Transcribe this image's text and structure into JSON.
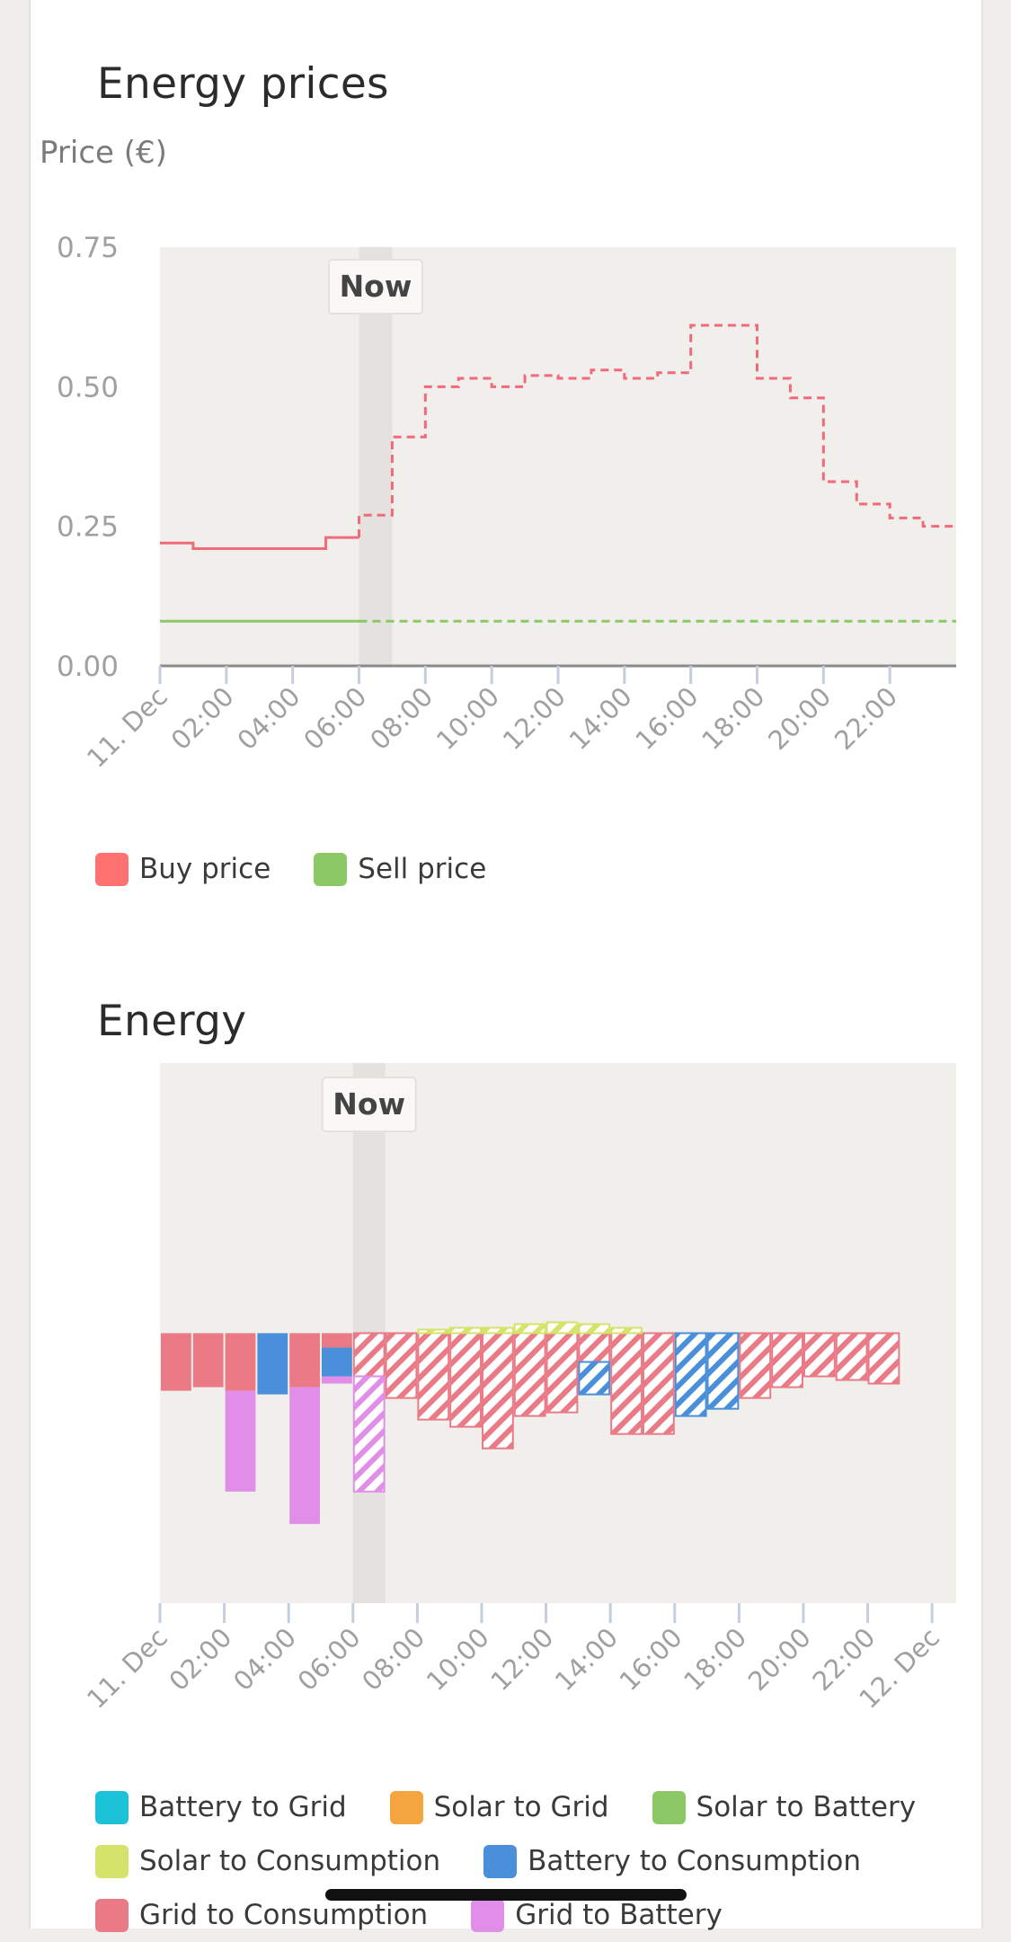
{
  "colors": {
    "buy": "#ff7272",
    "buy_line": "#f06a7a",
    "sell": "#8cc966",
    "plot_bg": "#f0efec",
    "now_band": "#e3e2de",
    "axis": "#8a8a8a",
    "tick": "#c5cde0",
    "tick_label": "#a0a0a0",
    "grid_consumption": "#e97a86",
    "grid_battery": "#e08ee8",
    "battery_consumption": "#4a8fd9",
    "solar_consumption": "#d6e36a",
    "battery_grid": "#1cc2d8",
    "solar_grid": "#f5a540",
    "solar_battery": "#8cc966"
  },
  "prices_chart": {
    "title": "Energy prices",
    "y_title": "Price (€)",
    "now_label": "Now",
    "legend": [
      {
        "label": "Buy price",
        "color_key": "buy"
      },
      {
        "label": "Sell price",
        "color_key": "sell"
      }
    ]
  },
  "energy_chart": {
    "title": "Energy",
    "now_label": "Now",
    "legend_rows": [
      [
        {
          "label": "Battery to Grid",
          "color_key": "battery_grid"
        },
        {
          "label": "Solar to Grid",
          "color_key": "solar_grid"
        },
        {
          "label": "Solar to Battery",
          "color_key": "solar_battery"
        }
      ],
      [
        {
          "label": "Solar to Consumption",
          "color_key": "solar_consumption"
        },
        {
          "label": "Battery to Consumption",
          "color_key": "battery_consumption"
        }
      ],
      [
        {
          "label": "Grid to Consumption",
          "color_key": "grid_consumption"
        },
        {
          "label": "Grid to Battery",
          "color_key": "grid_battery"
        }
      ]
    ]
  },
  "chart_data": [
    {
      "type": "line",
      "title": "Energy prices",
      "ylabel": "Price (€)",
      "ylim": [
        0,
        0.75
      ],
      "yticks": [
        "0.00",
        "0.25",
        "0.50",
        "0.75"
      ],
      "xlim_hours": [
        0,
        24
      ],
      "xtick_labels": [
        "11. Dec",
        "02:00",
        "04:00",
        "06:00",
        "08:00",
        "10:00",
        "12:00",
        "14:00",
        "16:00",
        "18:00",
        "20:00",
        "22:00"
      ],
      "now_hour": 6,
      "series": [
        {
          "name": "Buy price",
          "step": true,
          "values": [
            0.22,
            0.21,
            0.21,
            0.21,
            0.21,
            0.23,
            0.27,
            0.41,
            0.5,
            0.515,
            0.5,
            0.52,
            0.515,
            0.53,
            0.515,
            0.525,
            0.61,
            0.61,
            0.515,
            0.48,
            0.33,
            0.29,
            0.265,
            0.25
          ]
        },
        {
          "name": "Sell price",
          "step": true,
          "values": [
            0.08,
            0.08,
            0.08,
            0.08,
            0.08,
            0.08,
            0.08,
            0.08,
            0.08,
            0.08,
            0.08,
            0.08,
            0.08,
            0.08,
            0.08,
            0.08,
            0.08,
            0.08,
            0.08,
            0.08,
            0.08,
            0.08,
            0.08,
            0.08
          ]
        }
      ]
    },
    {
      "type": "bar",
      "stacked": true,
      "title": "Energy",
      "xlim_hours": [
        0,
        24.75
      ],
      "ylim": [
        -7.5,
        7.5
      ],
      "xtick_labels": [
        "11. Dec",
        "02:00",
        "04:00",
        "06:00",
        "08:00",
        "10:00",
        "12:00",
        "14:00",
        "16:00",
        "18:00",
        "20:00",
        "22:00",
        "12. Dec"
      ],
      "now_hour": 6,
      "hours": [
        "00:00",
        "01:00",
        "02:00",
        "03:00",
        "04:00",
        "05:00",
        "06:00",
        "07:00",
        "08:00",
        "09:00",
        "10:00",
        "11:00",
        "12:00",
        "13:00",
        "14:00",
        "15:00",
        "16:00",
        "17:00",
        "18:00",
        "19:00",
        "20:00",
        "21:00",
        "22:00"
      ],
      "series": [
        {
          "name": "Grid to Consumption",
          "values": [
            1.6,
            1.5,
            1.6,
            0,
            1.5,
            0.4,
            1.2,
            1.8,
            2.4,
            2.6,
            3.2,
            2.3,
            2.2,
            0.8,
            2.8,
            2.8,
            0,
            0,
            1.8,
            1.5,
            1.2,
            1.3,
            1.4
          ]
        },
        {
          "name": "Battery to Consumption",
          "values": [
            0,
            0,
            0,
            1.7,
            0,
            0.8,
            0,
            0,
            0,
            0,
            0,
            0,
            0,
            0.9,
            0,
            0,
            2.3,
            2.1,
            0,
            0,
            0,
            0,
            0
          ]
        },
        {
          "name": "Grid to Battery",
          "values": [
            0,
            0,
            2.8,
            0,
            3.8,
            0.2,
            3.2,
            0,
            0,
            0,
            0,
            0,
            0,
            0,
            0,
            0,
            0,
            0,
            0,
            0,
            0,
            0,
            0
          ]
        },
        {
          "name": "Solar to Consumption",
          "values": [
            0,
            0,
            0,
            0,
            0,
            0,
            0,
            0,
            0.1,
            0.15,
            0.15,
            0.25,
            0.3,
            0.25,
            0.15,
            0,
            0,
            0,
            0,
            0,
            0,
            0,
            0
          ]
        },
        {
          "name": "Battery to Grid",
          "values": [
            0,
            0,
            0,
            0,
            0,
            0,
            0,
            0,
            0,
            0,
            0,
            0,
            0,
            0,
            0,
            0,
            0,
            0,
            0,
            0,
            0,
            0,
            0
          ]
        },
        {
          "name": "Solar to Grid",
          "values": [
            0,
            0,
            0,
            0,
            0,
            0,
            0,
            0,
            0,
            0,
            0,
            0,
            0,
            0,
            0,
            0,
            0,
            0,
            0,
            0,
            0,
            0,
            0
          ]
        },
        {
          "name": "Solar to Battery",
          "values": [
            0,
            0,
            0,
            0,
            0,
            0,
            0,
            0,
            0,
            0,
            0,
            0,
            0,
            0,
            0,
            0,
            0,
            0,
            0,
            0,
            0,
            0,
            0
          ]
        }
      ]
    }
  ]
}
